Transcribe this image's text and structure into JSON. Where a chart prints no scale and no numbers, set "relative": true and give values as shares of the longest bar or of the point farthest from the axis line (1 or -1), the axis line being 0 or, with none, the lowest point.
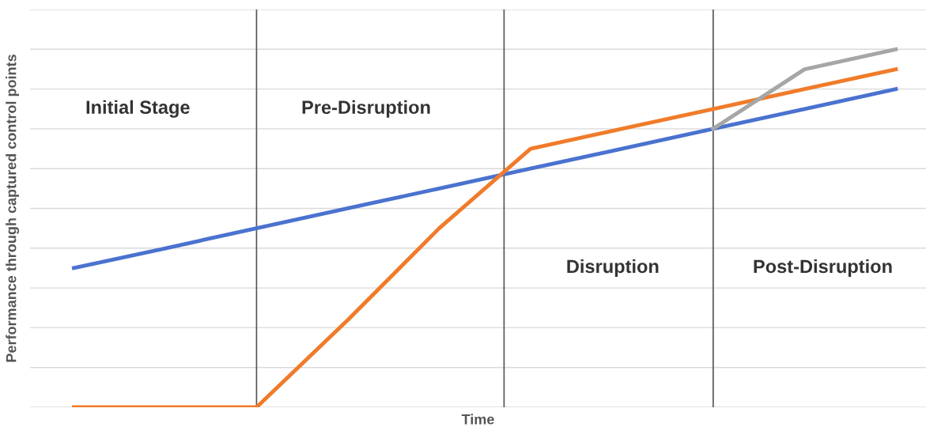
{
  "chart_data": {
    "type": "line",
    "relative": true,
    "xlabel": "Time",
    "ylabel": "Performance through captured control points",
    "categories": [
      null,
      null,
      null,
      null,
      null,
      null,
      null,
      null,
      null,
      null
    ],
    "series": [
      {
        "color": "#4a72cf",
        "values": [
          0.389,
          0.444,
          0.5,
          0.556,
          0.611,
          0.667,
          0.722,
          0.778,
          0.833,
          0.889
        ]
      },
      {
        "color": "#f07b2a",
        "values": [
          0,
          0,
          0,
          0.244,
          0.5,
          0.722,
          0.778,
          0.833,
          0.889,
          0.944
        ]
      },
      {
        "color": "#a6a6a6",
        "values": [
          null,
          null,
          null,
          null,
          null,
          null,
          null,
          0.778,
          0.944,
          1
        ]
      }
    ],
    "annotations": [
      "Initial Stage",
      "Pre-Disruption",
      "Disruption",
      "Post-Disruption"
    ],
    "grid": "y",
    "legend": false,
    "marker": "none",
    "line_style": "solid"
  }
}
